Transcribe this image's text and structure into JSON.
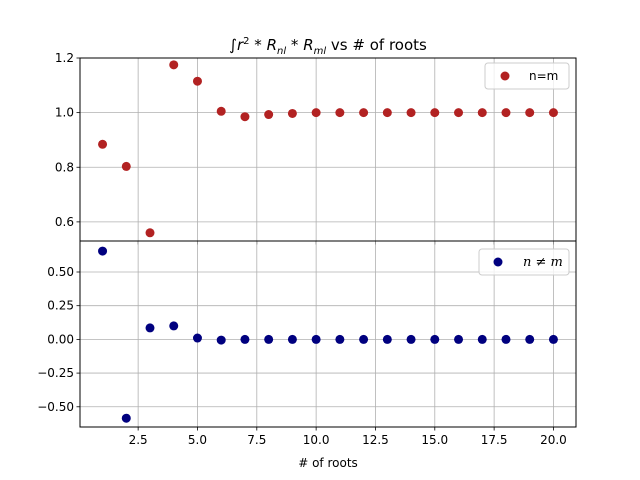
{
  "chart_data": [
    {
      "type": "scatter",
      "title": "∫r² * R_nl * R_ml vs # of roots",
      "title_parts": {
        "integral": "∫",
        "r": "r",
        "sup": "2",
        "star1": " * ",
        "R1": "R",
        "sub1": "nl",
        "star2": " * ",
        "R2": "R",
        "sub2": "ml",
        "rest": " vs # of roots"
      },
      "ylim": [
        0.53,
        1.2
      ],
      "yticks": [
        0.6,
        0.8,
        1.0,
        1.2
      ],
      "ytick_labels": [
        "0.6",
        "0.8",
        "1.0",
        "1.2"
      ],
      "grid": true,
      "legend_position": "top-right",
      "series": [
        {
          "name": "n=m",
          "color": "#b22222",
          "x": [
            1,
            2,
            3,
            4,
            5,
            6,
            7,
            8,
            9,
            10,
            11,
            12,
            13,
            14,
            15,
            16,
            17,
            18,
            19,
            20
          ],
          "values": [
            0.884,
            0.803,
            0.56,
            1.175,
            1.115,
            1.005,
            0.985,
            0.993,
            0.997,
            1.0,
            1.0,
            1.0,
            1.0,
            1.0,
            1.0,
            1.0,
            1.0,
            1.0,
            1.0,
            1.0
          ]
        }
      ]
    },
    {
      "type": "scatter",
      "xlabel": "# of roots",
      "xlim": [
        0.05,
        20.95
      ],
      "xticks": [
        2.5,
        5.0,
        7.5,
        10.0,
        12.5,
        15.0,
        17.5,
        20.0
      ],
      "xtick_labels": [
        "2.5",
        "5.0",
        "7.5",
        "10.0",
        "12.5",
        "15.0",
        "17.5",
        "20.0"
      ],
      "ylim": [
        -0.65,
        0.73
      ],
      "yticks": [
        -0.5,
        -0.25,
        0.0,
        0.25,
        0.5
      ],
      "ytick_labels": [
        "−0.50",
        "−0.25",
        "0.00",
        "0.25",
        "0.50"
      ],
      "grid": true,
      "legend_position": "top-right",
      "series": [
        {
          "name": "n ≠ m",
          "color": "#00007f",
          "x": [
            1,
            2,
            3,
            4,
            5,
            6,
            7,
            8,
            9,
            10,
            11,
            12,
            13,
            14,
            15,
            16,
            17,
            18,
            19,
            20
          ],
          "values": [
            0.655,
            -0.585,
            0.085,
            0.1,
            0.01,
            -0.005,
            0.0,
            0.0,
            0.0,
            0.0,
            0.0,
            0.0,
            0.0,
            0.0,
            0.0,
            0.0,
            0.0,
            0.0,
            0.0,
            0.0
          ]
        }
      ]
    }
  ]
}
